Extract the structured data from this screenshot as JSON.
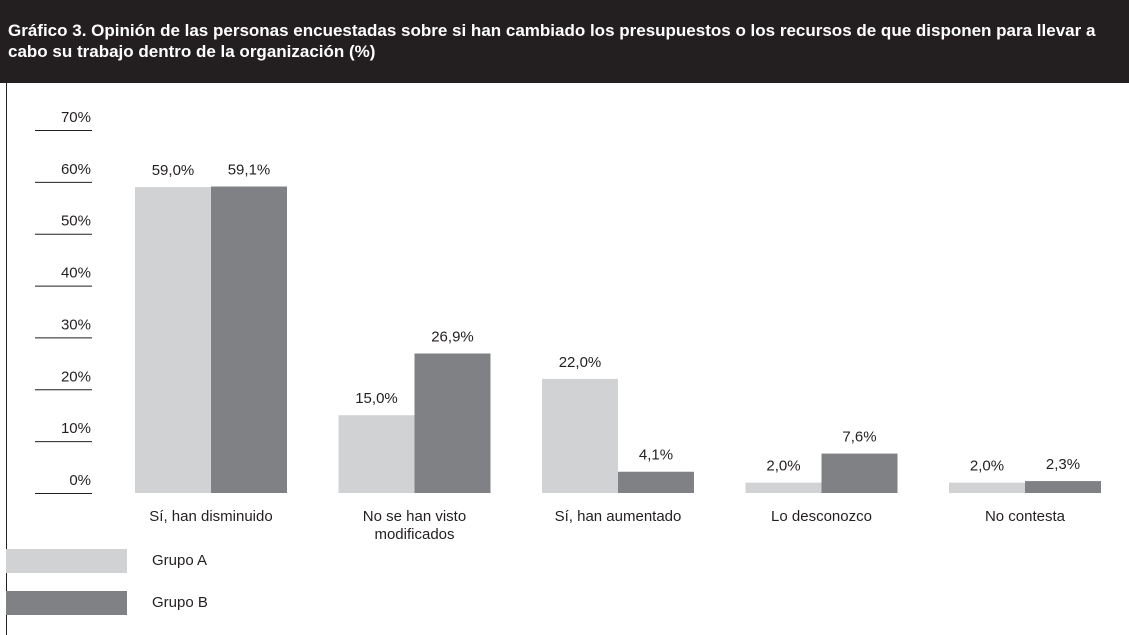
{
  "chart_data": {
    "type": "bar",
    "title": "Gráfico 3. Opinión de las personas encuestadas sobre si han cambiado los presupuestos o los recursos de que disponen para llevar a cabo su trabajo dentro de la organización (%)",
    "categories": [
      "Sí, han disminuido",
      "No se han visto modificados",
      "Sí, han aumentado",
      "Lo desconozco",
      "No contesta"
    ],
    "series": [
      {
        "name": "Grupo A",
        "color": "#d1d2d4",
        "values": [
          59.0,
          15.0,
          22.0,
          2.0,
          2.0
        ],
        "value_labels": [
          "59,0%",
          "15,0%",
          "22,0%",
          "2,0%",
          "2,0%"
        ]
      },
      {
        "name": "Grupo B",
        "color": "#808184",
        "values": [
          59.1,
          26.9,
          4.1,
          7.6,
          2.3
        ],
        "value_labels": [
          "59,1%",
          "26,9%",
          "4,1%",
          "7,6%",
          "2,3%"
        ]
      }
    ],
    "ylim": [
      0,
      70
    ],
    "yticks": [
      {
        "value": 0,
        "label": "0%"
      },
      {
        "value": 10,
        "label": "10%"
      },
      {
        "value": 20,
        "label": "20%"
      },
      {
        "value": 30,
        "label": "30%"
      },
      {
        "value": 40,
        "label": "40%"
      },
      {
        "value": 50,
        "label": "50%"
      },
      {
        "value": 60,
        "label": "60%"
      },
      {
        "value": 70,
        "label": "70%"
      }
    ]
  }
}
